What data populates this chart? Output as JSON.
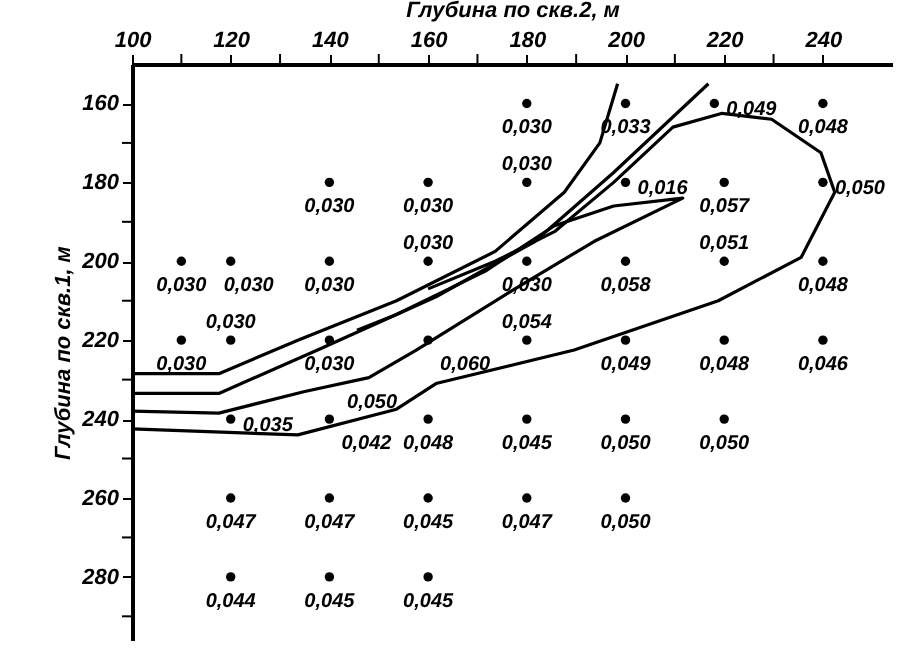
{
  "chart_data": {
    "type": "scatter",
    "xlabel": "Глубина  по скв.2, м",
    "ylabel": "Глубина по скв.1, м",
    "xlim": [
      100,
      254
    ],
    "ylim": [
      296,
      150
    ],
    "xticks": [
      100,
      {
        "value": 110,
        "label": null
      },
      120,
      {
        "value": 130,
        "label": null
      },
      140,
      {
        "value": 150,
        "label": null
      },
      160,
      {
        "value": 170,
        "label": null
      },
      180,
      {
        "value": 190,
        "label": null
      },
      200,
      {
        "value": 210,
        "label": null
      },
      220,
      {
        "value": 230,
        "label": null
      },
      240
    ],
    "yticks": [
      160,
      {
        "value": 170,
        "label": null
      },
      180,
      {
        "value": 190,
        "label": null
      },
      200,
      {
        "value": 210,
        "label": null
      },
      220,
      {
        "value": 230,
        "label": null
      },
      240,
      {
        "value": 250,
        "label": null
      },
      260,
      {
        "value": 270,
        "label": null
      },
      280,
      {
        "value": 290,
        "label": null
      }
    ],
    "grid": false,
    "series": [
      {
        "color": "#000000",
        "marker": "circle",
        "x": [
          180,
          200,
          218,
          240,
          140,
          160,
          180,
          200,
          220,
          240,
          110,
          120,
          140,
          160,
          180,
          200,
          220,
          240,
          110,
          120,
          140,
          160,
          180,
          200,
          220,
          240,
          120,
          140,
          160,
          180,
          200,
          220,
          120,
          140,
          160,
          180,
          200,
          120,
          140,
          160
        ],
        "values": [
          160,
          160,
          160,
          160,
          180,
          180,
          180,
          180,
          180,
          180,
          200,
          200,
          200,
          200,
          200,
          200,
          200,
          200,
          220,
          220,
          220,
          220,
          220,
          220,
          220,
          220,
          240,
          240,
          240,
          240,
          240,
          240,
          260,
          260,
          260,
          260,
          260,
          280,
          280,
          280
        ]
      },
      {
        "type": "line",
        "color": "#000000",
        "x": [
          100,
          117.6,
          133.6,
          153.6,
          173.6,
          187.6,
          194.8,
          198.4
        ],
        "values": [
          228.5,
          228.5,
          220,
          210,
          197.5,
          182.5,
          170,
          155
        ]
      },
      {
        "type": "line",
        "color": "#000000",
        "x": [
          100,
          117.6,
          137.6,
          161.6,
          181.6,
          197.6,
          216.8
        ],
        "values": [
          233.5,
          233.5,
          222.5,
          209,
          195,
          177.5,
          155
        ]
      },
      {
        "type": "line",
        "color": "#000000",
        "x": [
          100,
          117.6,
          135,
          148,
          157.6,
          177.6,
          193.6,
          211.6,
          197.6,
          185.6,
          171.6,
          153.6,
          145.6
        ],
        "values": [
          238,
          238.5,
          233,
          229.5,
          222.5,
          207,
          195,
          184,
          186,
          191,
          202.5,
          213.5,
          217.5
        ]
      },
      {
        "type": "line",
        "color": "#000000",
        "x": [
          100,
          133.6,
          153.6,
          161.6,
          189.6,
          218.8,
          235.6,
          242.4,
          239.6,
          229.6,
          219.6,
          209.6,
          197.6,
          185.6,
          173.6,
          160
        ],
        "values": [
          242.5,
          244,
          237.5,
          231,
          222.5,
          210,
          199,
          182.5,
          172.5,
          164,
          162.5,
          166,
          180,
          192.5,
          200,
          207
        ]
      }
    ],
    "annotations": [
      {
        "text": "0,030",
        "x": 180,
        "y": 160
      },
      {
        "text": "0,033",
        "x": 200,
        "y": 160
      },
      {
        "text": "0,049",
        "x": 218,
        "y": 160
      },
      {
        "text": "0,048",
        "x": 240,
        "y": 160
      },
      {
        "text": "0,030",
        "x": 140,
        "y": 180
      },
      {
        "text": "0,030",
        "x": 160,
        "y": 180
      },
      {
        "text": "0,030",
        "x": 180,
        "y": 180
      },
      {
        "text": "0,016",
        "x": 200,
        "y": 180
      },
      {
        "text": "0,057",
        "x": 220,
        "y": 180
      },
      {
        "text": "0,050",
        "x": 240,
        "y": 180
      },
      {
        "text": "0,030",
        "x": 110,
        "y": 200
      },
      {
        "text": "0,030",
        "x": 120,
        "y": 200
      },
      {
        "text": "0,030",
        "x": 140,
        "y": 200
      },
      {
        "text": "0,030",
        "x": 160,
        "y": 200
      },
      {
        "text": "0,030",
        "x": 180,
        "y": 200
      },
      {
        "text": "0,058",
        "x": 200,
        "y": 200
      },
      {
        "text": "0,051",
        "x": 220,
        "y": 200
      },
      {
        "text": "0,048",
        "x": 240,
        "y": 200
      },
      {
        "text": "0,030",
        "x": 110,
        "y": 220
      },
      {
        "text": "0,030",
        "x": 120,
        "y": 220
      },
      {
        "text": "0,030",
        "x": 140,
        "y": 220
      },
      {
        "text": "0,060",
        "x": 160,
        "y": 220
      },
      {
        "text": "0,054",
        "x": 180,
        "y": 220
      },
      {
        "text": "0,049",
        "x": 200,
        "y": 220
      },
      {
        "text": "0,048",
        "x": 220,
        "y": 220
      },
      {
        "text": "0,046",
        "x": 240,
        "y": 220
      },
      {
        "text": "0,035",
        "x": 120,
        "y": 240
      },
      {
        "text": "0,042",
        "x": 140,
        "y": 240
      },
      {
        "text": "0,048",
        "x": 160,
        "y": 240
      },
      {
        "text": "0,045",
        "x": 180,
        "y": 240
      },
      {
        "text": "0,050",
        "x": 200,
        "y": 240
      },
      {
        "text": "0,050",
        "x": 220,
        "y": 240
      },
      {
        "text": "0,047",
        "x": 120,
        "y": 260
      },
      {
        "text": "0,047",
        "x": 140,
        "y": 260
      },
      {
        "text": "0,045",
        "x": 160,
        "y": 260
      },
      {
        "text": "0,047",
        "x": 180,
        "y": 260
      },
      {
        "text": "0,050",
        "x": 200,
        "y": 260
      },
      {
        "text": "0,044",
        "x": 120,
        "y": 280
      },
      {
        "text": "0,045",
        "x": 140,
        "y": 280
      },
      {
        "text": "0,045",
        "x": 160,
        "y": 280
      },
      {
        "text": "0,050",
        "x": 145,
        "y": 240.3
      }
    ]
  }
}
